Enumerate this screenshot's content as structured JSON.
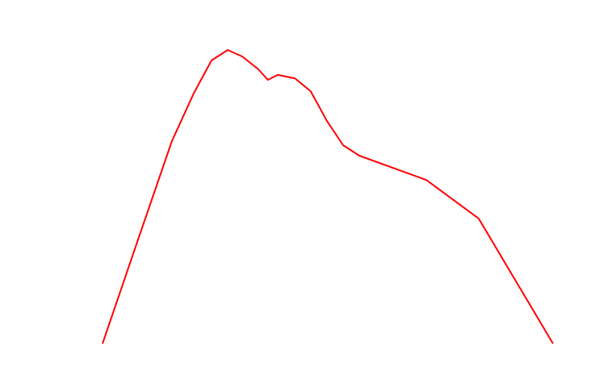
{
  "chart_data": {
    "type": "line",
    "x": [
      0,
      7.7,
      15.4,
      20.3,
      24.2,
      27.8,
      31.0,
      34.6,
      36.7,
      38.9,
      42.7,
      46.2,
      49.8,
      53.4,
      57.0,
      71.9,
      83.5,
      100
    ],
    "series": [
      {
        "color": "#ff0000",
        "values": [
          0,
          33.0,
          65.7,
          81.4,
          91.9,
          95.3,
          93.2,
          89.0,
          85.6,
          87.2,
          86.1,
          81.9,
          72.3,
          64.4,
          61.0,
          53.1,
          40.6,
          0
        ]
      }
    ],
    "xlim": [
      0,
      100
    ],
    "ylim": [
      0,
      100
    ]
  }
}
